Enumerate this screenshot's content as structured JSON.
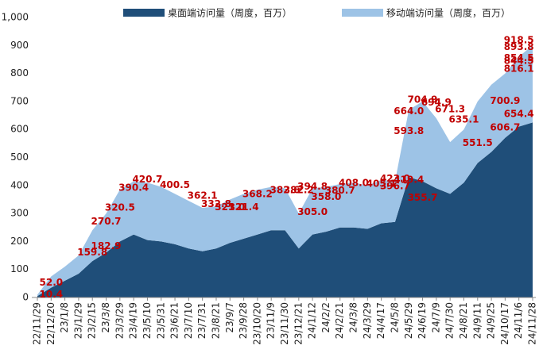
{
  "chart_data": {
    "type": "stacked_area",
    "categories": [
      "22/11/29",
      "22/12/20",
      "23/1/8",
      "23/1/29",
      "23/2/15",
      "23/3/8",
      "23/3/29",
      "23/4/19",
      "23/5/10",
      "23/5/31",
      "23/6/21",
      "23/7/10",
      "23/7/31",
      "23/8/21",
      "23/9/7",
      "23/9/28",
      "23/10/20",
      "23/11/9",
      "23/11/30",
      "23/12/21",
      "24/1/12",
      "24/2/2",
      "24/2/21",
      "24/3/8",
      "24/3/29",
      "24/4/17",
      "24/5/8",
      "24/5/29",
      "24/6/19",
      "24/7/9",
      "24/7/30",
      "24/8/21",
      "24/9/11",
      "24/9/25",
      "24/10/17",
      "24/11/6",
      "24/11/28"
    ],
    "series": [
      {
        "name": "桌面端访问量（周度，百万）",
        "color": "#1f4e79",
        "values": [
          5,
          35,
          60,
          85,
          130,
          160,
          200,
          225,
          205,
          200,
          190,
          175,
          165,
          175,
          195,
          210,
          225,
          240,
          240,
          175,
          225,
          235,
          250,
          250,
          245,
          265,
          270,
          430,
          415,
          390,
          370,
          410,
          480,
          520,
          570,
          610,
          625
        ]
      },
      {
        "name": "移动端访问量（周度，百万）",
        "color": "#9dc3e6",
        "values": [
          5,
          40,
          50,
          65,
          110,
          140,
          185,
          190,
          205,
          195,
          180,
          170,
          155,
          150,
          155,
          160,
          160,
          155,
          150,
          125,
          165,
          160,
          155,
          160,
          155,
          155,
          145,
          240,
          285,
          250,
          185,
          190,
          220,
          240,
          230,
          250,
          275
        ]
      }
    ],
    "annotations": [
      {
        "x": "22/12/20",
        "value": 10.4,
        "label": "10.4"
      },
      {
        "x": "22/12/20",
        "value": 52.0,
        "label": "52.0"
      },
      {
        "x": "23/2/15",
        "value": 159.8,
        "label": "159.8"
      },
      {
        "x": "23/3/8",
        "value": 182.9,
        "label": "182.9"
      },
      {
        "x": "23/3/8",
        "value": 270.7,
        "label": "270.7"
      },
      {
        "x": "23/3/29",
        "value": 320.5,
        "label": "320.5"
      },
      {
        "x": "23/4/19",
        "value": 390.4,
        "label": "390.4"
      },
      {
        "x": "23/5/10",
        "value": 420.7,
        "label": "420.7"
      },
      {
        "x": "23/6/21",
        "value": 400.5,
        "label": "400.5"
      },
      {
        "x": "23/7/31",
        "value": 362.1,
        "label": "362.1"
      },
      {
        "x": "23/8/21",
        "value": 332.8,
        "label": "332.8"
      },
      {
        "x": "23/9/7",
        "value": 321.0,
        "label": "321.0"
      },
      {
        "x": "23/9/28",
        "value": 321.4,
        "label": "321.4"
      },
      {
        "x": "23/10/20",
        "value": 368.2,
        "label": "368.2"
      },
      {
        "x": "23/11/30",
        "value": 382.6,
        "label": "382.6"
      },
      {
        "x": "23/12/21",
        "value": 382.2,
        "label": "382.2"
      },
      {
        "x": "24/1/12",
        "value": 394.8,
        "label": "394.8"
      },
      {
        "x": "24/1/12",
        "value": 305.0,
        "label": "305.0"
      },
      {
        "x": "24/2/2",
        "value": 358.0,
        "label": "358.0"
      },
      {
        "x": "24/2/21",
        "value": 380.7,
        "label": "380.7"
      },
      {
        "x": "24/3/8",
        "value": 408.0,
        "label": "408.0"
      },
      {
        "x": "24/4/17",
        "value": 405.1,
        "label": "405.1"
      },
      {
        "x": "24/5/8",
        "value": 396.7,
        "label": "396.7"
      },
      {
        "x": "24/5/8",
        "value": 423.0,
        "label": "423.0"
      },
      {
        "x": "24/5/29",
        "value": 419.4,
        "label": "419.4"
      },
      {
        "x": "24/6/19",
        "value": 355.7,
        "label": "355.7"
      },
      {
        "x": "24/5/29",
        "value": 593.8,
        "label": "593.8"
      },
      {
        "x": "24/5/29",
        "value": 664.0,
        "label": "664.0"
      },
      {
        "x": "24/6/19",
        "value": 704.9,
        "label": "704.9"
      },
      {
        "x": "24/7/9",
        "value": 694.9,
        "label": "694.9"
      },
      {
        "x": "24/7/30",
        "value": 671.3,
        "label": "671.3"
      },
      {
        "x": "24/8/21",
        "value": 635.1,
        "label": "635.1"
      },
      {
        "x": "24/9/11",
        "value": 551.5,
        "label": "551.5"
      },
      {
        "x": "24/10/17",
        "value": 606.7,
        "label": "606.7"
      },
      {
        "x": "24/11/6",
        "value": 654.4,
        "label": "654.4"
      },
      {
        "x": "24/10/17",
        "value": 700.9,
        "label": "700.9"
      },
      {
        "x": "24/11/6",
        "value": 816.1,
        "label": "816.1"
      },
      {
        "x": "24/11/6",
        "value": 854.5,
        "label": "854.5"
      },
      {
        "x": "24/11/6",
        "value": 844.5,
        "label": "844.5"
      },
      {
        "x": "24/11/6",
        "value": 893.8,
        "label": "893.8"
      },
      {
        "x": "24/11/6",
        "value": 918.5,
        "label": "918.5"
      }
    ],
    "ylim": [
      0,
      1000
    ],
    "yticks": [
      0,
      100,
      200,
      300,
      400,
      500,
      600,
      700,
      800,
      900,
      {
        "value": 1000,
        "label": "1,000"
      }
    ],
    "label_color": "#c00000"
  }
}
